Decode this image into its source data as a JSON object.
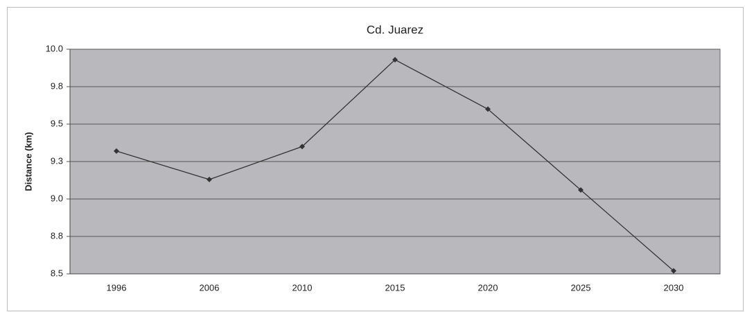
{
  "chart_data": {
    "type": "line",
    "title": "Cd. Juarez",
    "y_label": "Distance (km)",
    "categories": [
      "1996",
      "2006",
      "2010",
      "2015",
      "2020",
      "2025",
      "2030"
    ],
    "series": [
      {
        "name": "Cd. Juarez",
        "color": "#333333",
        "values": [
          9.32,
          9.13,
          9.35,
          9.93,
          9.6,
          9.06,
          8.52
        ]
      }
    ],
    "ylim": [
      8.5,
      10
    ],
    "yticks": [
      8.5,
      {
        "value": 8.75,
        "label": "8.8"
      },
      {
        "value": 9,
        "label": "9.0"
      },
      {
        "value": 9.25,
        "label": "9.3"
      },
      9.5,
      {
        "value": 9.75,
        "label": "9.8"
      },
      {
        "value": 10,
        "label": "10.0"
      }
    ],
    "grid": true,
    "plot_background": "#b9b9bd"
  }
}
